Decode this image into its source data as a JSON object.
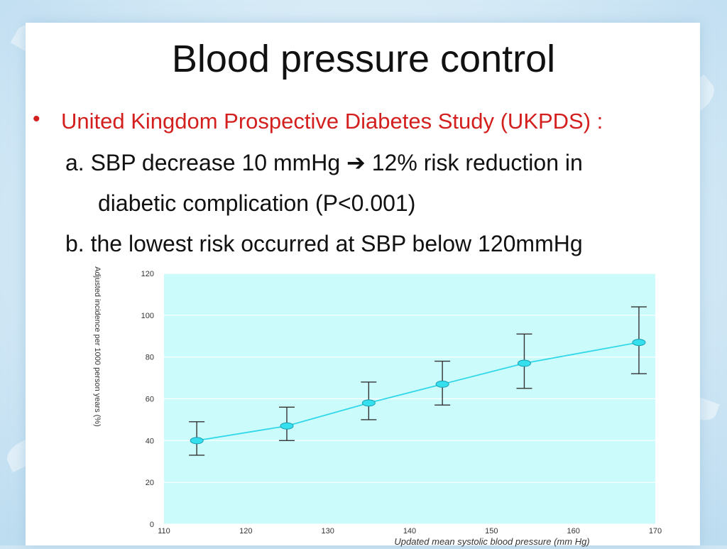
{
  "slide": {
    "title": "Blood pressure control",
    "bullet_marker": "•",
    "bullet": "United Kingdom Prospective Diabetes Study (UKPDS) :",
    "line_a_prefix": "a. SBP decrease 10 mmHg ",
    "line_a_arrow": "➔",
    "line_a_suffix": " 12% risk reduction in",
    "line_a_cont": "diabetic complication (P<0.001)",
    "line_b": "b. the lowest risk occurred at  SBP below 120mmHg"
  },
  "colors": {
    "bullet_text": "#d41f1f",
    "plot_bg": "#ccfbfc",
    "series_line": "#2fd8e8",
    "marker_fill": "#35e0ee",
    "error_bar": "#333333"
  },
  "chart_data": {
    "type": "line",
    "xlabel": "Updated mean systolic blood pressure (mm Hg)",
    "ylabel": "Adjusted incidence per 1000 person years (%)",
    "xlim": [
      110,
      170
    ],
    "ylim": [
      0,
      120
    ],
    "x_ticks": [
      "110",
      "120",
      "130",
      "140",
      "150",
      "160",
      "170"
    ],
    "y_ticks": [
      "0",
      "20",
      "40",
      "60",
      "80",
      "100",
      "120"
    ],
    "grid": "horizontal",
    "series": [
      {
        "x": [
          114,
          125,
          135,
          144,
          154,
          168
        ],
        "y": [
          40,
          47,
          58,
          67,
          77,
          87
        ],
        "err_low": [
          33,
          40,
          50,
          57,
          65,
          72
        ],
        "err_high": [
          49,
          56,
          68,
          78,
          91,
          104
        ]
      }
    ]
  }
}
